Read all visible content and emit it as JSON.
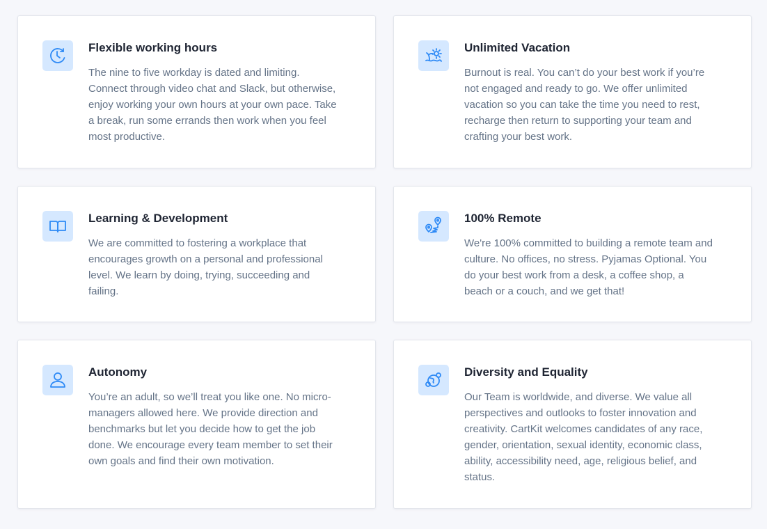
{
  "cards": [
    {
      "icon": "clock-icon",
      "title": "Flexible working hours",
      "text": "The nine to five workday is dated and limiting. Connect through video chat and Slack, but otherwise, enjoy working your own hours at your own pace. Take a break, run some errands then work when you feel most productive."
    },
    {
      "icon": "beach-icon",
      "title": "Unlimited Vacation",
      "text": "Burnout is real. You can’t do your best work if you’re not engaged and ready to go. We offer unlimited vacation so you can take the time you need to rest, recharge then return to supporting your team and crafting your best work."
    },
    {
      "icon": "book-icon",
      "title": "Learning & Development",
      "text": "We are committed to fostering a workplace that encourages growth on a personal and professional level. We learn by doing, trying, succeeding and failing."
    },
    {
      "icon": "map-pins-icon",
      "title": "100% Remote",
      "text": "We're 100% committed to building a remote team and culture. No offices, no stress. Pyjamas Optional. You do your best work from a desk, a coffee shop, a beach or a couch, and we get that!"
    },
    {
      "icon": "user-icon",
      "title": "Autonomy",
      "text": "You’re an adult, so we’ll treat you like one. No micro-managers allowed here. We provide direction and benchmarks but let you decide how to get the job done. We encourage every team member to set their own goals and find their own motivation."
    },
    {
      "icon": "globe-people-icon",
      "title": "Diversity and Equality",
      "text": "Our Team is worldwide, and diverse. We value all perspectives and outlooks to foster innovation and creativity. CartKit welcomes candidates of any race, gender, orientation, sexual identity, economic class, ability, accessibility need, age, religious belief, and status."
    }
  ]
}
